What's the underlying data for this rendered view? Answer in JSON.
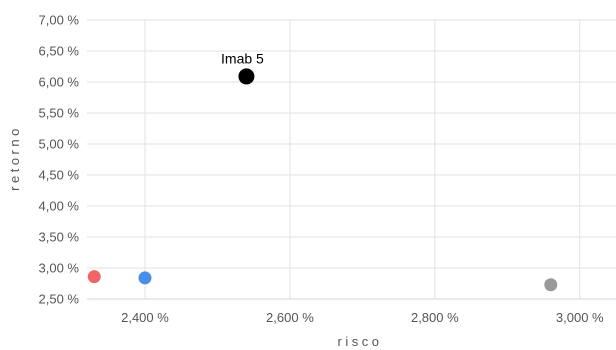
{
  "chart_data": {
    "type": "scatter",
    "title": "",
    "xlabel": "risco",
    "ylabel": "retorno",
    "xlim": [
      2.32,
      3.05
    ],
    "ylim": [
      2.5,
      7.0
    ],
    "xticks": [
      2.4,
      2.6,
      2.8,
      3.0
    ],
    "xtick_labels": [
      "2,400 %",
      "2,600 %",
      "2,800 %",
      "3,000 %"
    ],
    "yticks": [
      2.5,
      3.0,
      3.5,
      4.0,
      4.5,
      5.0,
      5.5,
      6.0,
      6.5,
      7.0
    ],
    "ytick_labels": [
      "2,50 %",
      "3,00 %",
      "3,50 %",
      "4,00 %",
      "4,50 %",
      "5,00 %",
      "5,50 %",
      "6,00 %",
      "6,50 %",
      "7,00 %"
    ],
    "grid": true,
    "points": [
      {
        "x": 2.33,
        "y": 2.86,
        "color": "#f06464",
        "label": ""
      },
      {
        "x": 2.4,
        "y": 2.84,
        "color": "#4a8fe7",
        "label": ""
      },
      {
        "x": 2.54,
        "y": 6.09,
        "color": "#000000",
        "label": "Imab 5"
      },
      {
        "x": 2.96,
        "y": 2.73,
        "color": "#999999",
        "label": ""
      }
    ]
  }
}
